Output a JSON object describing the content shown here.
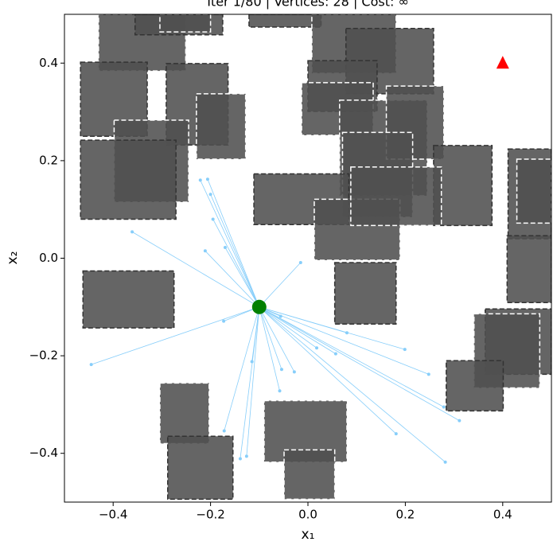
{
  "chart_data": {
    "type": "scatter",
    "title": "Iter 1/80  |  Vertices: 28  |  Cost: ∞",
    "xlabel": "x₁",
    "ylabel": "x₂",
    "xlim": [
      -0.5,
      0.5
    ],
    "ylim": [
      -0.5,
      0.5
    ],
    "xticks": [
      {
        "value": -0.4,
        "label": "−0.4"
      },
      {
        "value": -0.2,
        "label": "−0.2"
      },
      {
        "value": 0.0,
        "label": "0.0"
      },
      0.2,
      0.4
    ],
    "yticks": [
      {
        "value": -0.4,
        "label": "−0.4"
      },
      {
        "value": -0.2,
        "label": "−0.2"
      },
      {
        "value": 0.0,
        "label": "0.0"
      },
      0.2,
      0.4
    ],
    "obstacle_color": "#505050",
    "obstacles": [
      {
        "x0": -0.43,
        "y0": 0.384,
        "x1": -0.251,
        "y1": 0.5,
        "edge": "#ffffff"
      },
      {
        "x0": -0.355,
        "y0": 0.458,
        "x1": -0.175,
        "y1": 0.5,
        "edge": "#333333"
      },
      {
        "x0": -0.304,
        "y0": 0.464,
        "x1": -0.2,
        "y1": 0.5,
        "edge": "#ffffff"
      },
      {
        "x0": -0.121,
        "y0": 0.474,
        "x1": 0.027,
        "y1": 0.5,
        "edge": "#333333"
      },
      {
        "x0": 0.008,
        "y0": 0.379,
        "x1": 0.181,
        "y1": 0.5,
        "edge": "#ffffff"
      },
      {
        "x0": 0.078,
        "y0": 0.337,
        "x1": 0.258,
        "y1": 0.471,
        "edge": "#333333"
      },
      {
        "x0": -0.467,
        "y0": 0.25,
        "x1": -0.33,
        "y1": 0.402,
        "edge": "#333333"
      },
      {
        "x0": -0.291,
        "y0": 0.232,
        "x1": -0.164,
        "y1": 0.399,
        "edge": "#333333"
      },
      {
        "x0": -0.229,
        "y0": 0.203,
        "x1": -0.128,
        "y1": 0.337,
        "edge": "#ffffff"
      },
      {
        "x0": 0.0,
        "y0": 0.301,
        "x1": 0.142,
        "y1": 0.405,
        "edge": "#333333"
      },
      {
        "x0": -0.013,
        "y0": 0.252,
        "x1": 0.134,
        "y1": 0.36,
        "edge": "#ffffff"
      },
      {
        "x0": 0.065,
        "y0": 0.128,
        "x1": 0.245,
        "y1": 0.324,
        "edge": "#ffffff"
      },
      {
        "x0": 0.161,
        "y0": 0.203,
        "x1": 0.279,
        "y1": 0.353,
        "edge": "#ffffff"
      },
      {
        "x0": -0.398,
        "y0": 0.115,
        "x1": -0.245,
        "y1": 0.283,
        "edge": "#ffffff"
      },
      {
        "x0": -0.467,
        "y0": 0.08,
        "x1": -0.271,
        "y1": 0.242,
        "edge": "#333333"
      },
      {
        "x0": 0.071,
        "y0": 0.084,
        "x1": 0.215,
        "y1": 0.258,
        "edge": "#ffffff"
      },
      {
        "x0": 0.258,
        "y0": 0.067,
        "x1": 0.378,
        "y1": 0.231,
        "edge": "#333333"
      },
      {
        "x0": -0.111,
        "y0": 0.069,
        "x1": 0.084,
        "y1": 0.173,
        "edge": "#333333"
      },
      {
        "x0": 0.013,
        "y0": -0.004,
        "x1": 0.189,
        "y1": 0.121,
        "edge": "#ffffff"
      },
      {
        "x0": 0.088,
        "y0": 0.067,
        "x1": 0.274,
        "y1": 0.187,
        "edge": "#ffffff"
      },
      {
        "x0": 0.411,
        "y0": 0.04,
        "x1": 0.5,
        "y1": 0.224,
        "edge": "#333333"
      },
      {
        "x0": 0.429,
        "y0": 0.072,
        "x1": 0.5,
        "y1": 0.203,
        "edge": "#ffffff"
      },
      {
        "x0": 0.409,
        "y0": -0.091,
        "x1": 0.5,
        "y1": 0.046,
        "edge": "#333333"
      },
      {
        "x0": -0.462,
        "y0": -0.143,
        "x1": -0.275,
        "y1": -0.026,
        "edge": "#333333"
      },
      {
        "x0": 0.055,
        "y0": -0.135,
        "x1": 0.181,
        "y1": -0.009,
        "edge": "#333333"
      },
      {
        "x0": 0.364,
        "y0": -0.238,
        "x1": 0.5,
        "y1": -0.104,
        "edge": "#333333"
      },
      {
        "x0": 0.341,
        "y0": -0.266,
        "x1": 0.476,
        "y1": -0.114,
        "edge": "#ffffff"
      },
      {
        "x0": 0.284,
        "y0": -0.313,
        "x1": 0.401,
        "y1": -0.21,
        "edge": "#333333"
      },
      {
        "x0": -0.304,
        "y0": -0.38,
        "x1": -0.203,
        "y1": -0.256,
        "edge": "#ffffff"
      },
      {
        "x0": -0.288,
        "y0": -0.494,
        "x1": -0.154,
        "y1": -0.365,
        "edge": "#333333"
      },
      {
        "x0": -0.09,
        "y0": -0.418,
        "x1": 0.08,
        "y1": -0.292,
        "edge": "#ffffff"
      },
      {
        "x0": -0.049,
        "y0": -0.494,
        "x1": 0.055,
        "y1": -0.393,
        "edge": "#ffffff"
      }
    ],
    "tree": {
      "color": "#87cefa",
      "x": [
        -0.221,
        -0.206,
        -0.2,
        -0.195,
        -0.211,
        -0.17,
        -0.361,
        -0.015,
        -0.056,
        -0.173,
        -0.445,
        -0.115,
        -0.054,
        -0.028,
        -0.058,
        0.018,
        0.057,
        0.08,
        0.199,
        0.248,
        0.311,
        0.279,
        0.181,
        0.282,
        -0.172,
        -0.126,
        -0.139
      ],
      "y": [
        0.16,
        0.162,
        0.131,
        0.08,
        0.015,
        0.022,
        0.054,
        -0.009,
        -0.119,
        -0.129,
        -0.218,
        -0.212,
        -0.228,
        -0.233,
        -0.272,
        -0.184,
        -0.196,
        -0.153,
        -0.187,
        -0.238,
        -0.333,
        -0.305,
        -0.36,
        -0.418,
        -0.354,
        -0.406,
        -0.411
      ]
    },
    "start": {
      "x": -0.1,
      "y": -0.1,
      "color": "#008000"
    },
    "goal": {
      "x": 0.4,
      "y": 0.4,
      "color": "#ff0000"
    }
  }
}
